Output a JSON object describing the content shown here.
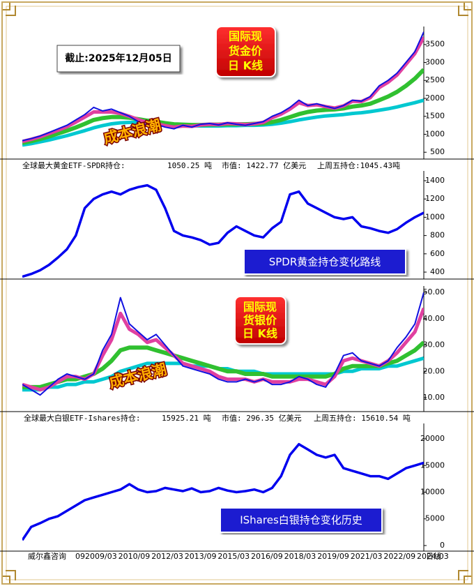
{
  "chart_data": [
    {
      "type": "line",
      "ylim": [
        310,
        4000
      ],
      "yticks": [
        500,
        1000,
        1500,
        2000,
        2500,
        3000,
        3500
      ],
      "date_label": "截止:2025年12月05日",
      "badge": [
        "国际现",
        "货金价",
        "日 K线"
      ],
      "annotation": "成本浪潮",
      "series": [
        {
          "color": "#00c8d0",
          "width": 5,
          "values": [
            700,
            740,
            790,
            840,
            900,
            960,
            1030,
            1100,
            1180,
            1240,
            1290,
            1320,
            1330,
            1330,
            1320,
            1300,
            1280,
            1260,
            1250,
            1240,
            1230,
            1230,
            1230,
            1240,
            1240,
            1250,
            1250,
            1260,
            1280,
            1310,
            1350,
            1400,
            1440,
            1480,
            1510,
            1530,
            1550,
            1580,
            1600,
            1630,
            1670,
            1710,
            1760,
            1820,
            1880,
            1950
          ]
        },
        {
          "color": "#30c030",
          "width": 6,
          "values": [
            760,
            810,
            870,
            940,
            1020,
            1100,
            1190,
            1290,
            1400,
            1450,
            1480,
            1480,
            1460,
            1420,
            1380,
            1350,
            1310,
            1280,
            1270,
            1260,
            1260,
            1270,
            1270,
            1280,
            1280,
            1280,
            1290,
            1300,
            1340,
            1400,
            1480,
            1560,
            1620,
            1660,
            1680,
            1690,
            1720,
            1770,
            1800,
            1850,
            1950,
            2050,
            2180,
            2350,
            2550,
            2800
          ]
        },
        {
          "color": "#e040a0",
          "width": 5,
          "values": [
            800,
            860,
            930,
            1020,
            1110,
            1210,
            1340,
            1480,
            1620,
            1620,
            1620,
            1580,
            1500,
            1410,
            1330,
            1290,
            1240,
            1200,
            1230,
            1220,
            1260,
            1280,
            1270,
            1300,
            1290,
            1270,
            1290,
            1330,
            1460,
            1560,
            1700,
            1880,
            1800,
            1820,
            1770,
            1730,
            1790,
            1920,
            1910,
            2020,
            2300,
            2450,
            2650,
            2950,
            3250,
            3700
          ]
        },
        {
          "color": "#1010e0",
          "width": 2,
          "values": [
            820,
            880,
            950,
            1050,
            1150,
            1250,
            1400,
            1550,
            1750,
            1650,
            1700,
            1600,
            1500,
            1350,
            1250,
            1280,
            1200,
            1150,
            1250,
            1200,
            1280,
            1300,
            1260,
            1320,
            1280,
            1250,
            1300,
            1350,
            1500,
            1600,
            1750,
            1950,
            1800,
            1850,
            1780,
            1720,
            1800,
            1950,
            1920,
            2050,
            2350,
            2500,
            2700,
            3000,
            3300,
            3850
          ]
        }
      ]
    },
    {
      "type": "line",
      "ylim": [
        324,
        1507
      ],
      "yticks": [
        400,
        600,
        800,
        1000,
        1200,
        1400
      ],
      "info": [
        "全球最大黄金ETF-SPDR持仓:",
        "1050.25 吨",
        "市值: 1422.77 亿美元",
        "上周五持仓:1045.43吨"
      ],
      "annotation": "SPDR黄金持仓变化路线",
      "series": [
        {
          "color": "#0000ee",
          "width": 3.5,
          "values": [
            350,
            380,
            420,
            480,
            560,
            650,
            800,
            1100,
            1200,
            1250,
            1280,
            1250,
            1300,
            1330,
            1350,
            1300,
            1100,
            850,
            800,
            780,
            750,
            700,
            720,
            830,
            900,
            850,
            800,
            780,
            880,
            950,
            1250,
            1280,
            1150,
            1100,
            1050,
            1000,
            980,
            1000,
            900,
            880,
            850,
            830,
            870,
            940,
            1000,
            1050
          ]
        }
      ]
    },
    {
      "type": "line",
      "ylim": [
        4.7,
        52.4
      ],
      "yticks": [
        {
          "value": 10,
          "label": "10.00"
        },
        {
          "value": 20,
          "label": "20.00"
        },
        {
          "value": 30,
          "label": "30.00"
        },
        {
          "value": 40,
          "label": "40.00"
        },
        {
          "value": 50,
          "label": "50.00"
        }
      ],
      "badge": [
        "国际现",
        "货银价",
        "日 K线"
      ],
      "annotation": "成本浪潮",
      "series": [
        {
          "color": "#00c8d0",
          "width": 5,
          "values": [
            13,
            13,
            13,
            14,
            14,
            15,
            15,
            16,
            16,
            17,
            18,
            20,
            21,
            22,
            23,
            23,
            23,
            23,
            23,
            22,
            22,
            22,
            21,
            21,
            20,
            20,
            20,
            19,
            19,
            19,
            19,
            19,
            19,
            19,
            19,
            19,
            20,
            20,
            21,
            21,
            21,
            22,
            22,
            23,
            24,
            25
          ]
        },
        {
          "color": "#30c030",
          "width": 6,
          "values": [
            14,
            14,
            14,
            15,
            16,
            17,
            17,
            18,
            19,
            21,
            24,
            28,
            29,
            29,
            29,
            28,
            27,
            26,
            25,
            24,
            23,
            22,
            21,
            20,
            20,
            19,
            19,
            19,
            18,
            18,
            18,
            18,
            18,
            18,
            18,
            19,
            21,
            22,
            22,
            22,
            22,
            23,
            24,
            26,
            28,
            31
          ]
        },
        {
          "color": "#e040a0",
          "width": 5,
          "values": [
            15,
            14,
            13,
            14,
            16,
            18,
            18,
            17,
            19,
            26,
            32,
            42,
            36,
            34,
            31,
            32,
            29,
            26,
            23,
            22,
            21,
            20,
            18,
            17,
            17,
            17,
            16,
            17,
            16,
            16,
            16,
            17,
            17,
            16,
            15,
            18,
            24,
            25,
            24,
            23,
            22,
            24,
            27,
            31,
            35,
            44
          ]
        },
        {
          "color": "#1010e0",
          "width": 2,
          "values": [
            15,
            13,
            11,
            14,
            17,
            19,
            18,
            17,
            19,
            28,
            34,
            48,
            38,
            35,
            32,
            34,
            30,
            26,
            22,
            21,
            20,
            19,
            17,
            16,
            16,
            17,
            16,
            17,
            15,
            15,
            16,
            18,
            17,
            15,
            14,
            19,
            26,
            27,
            24,
            23,
            22,
            24,
            29,
            33,
            38,
            50
          ]
        }
      ]
    },
    {
      "type": "line",
      "ylim": [
        -1046,
        22876
      ],
      "yticks": [
        0,
        5000,
        10000,
        15000,
        20000
      ],
      "info": [
        "全球最大白银ETF-Ishares持仓:",
        "15925.21 吨",
        "市值: 296.35 亿美元",
        "上周五持仓: 15610.54 吨"
      ],
      "annotation": "IShares白银持仓变化历史",
      "series": [
        {
          "color": "#0000ee",
          "width": 3.5,
          "values": [
            1000,
            3500,
            4200,
            5000,
            5500,
            6500,
            7500,
            8500,
            9000,
            9500,
            10000,
            10500,
            11500,
            10500,
            10000,
            10200,
            10800,
            10500,
            10200,
            10700,
            10000,
            10200,
            10800,
            10300,
            10000,
            10200,
            10500,
            10000,
            10800,
            13000,
            17000,
            19000,
            18000,
            17000,
            16500,
            17000,
            14500,
            14000,
            13500,
            13000,
            13000,
            12500,
            13500,
            14500,
            15000,
            15500
          ]
        }
      ]
    }
  ],
  "x_labels": [
    "威尔鑫咨询",
    "09",
    "2009/03",
    "2010/09",
    "2012/03",
    "2013/09",
    "2015/03",
    "2016/09",
    "2018/03",
    "2019/09",
    "2021/03",
    "2022/09",
    "2024/03",
    "日线"
  ]
}
